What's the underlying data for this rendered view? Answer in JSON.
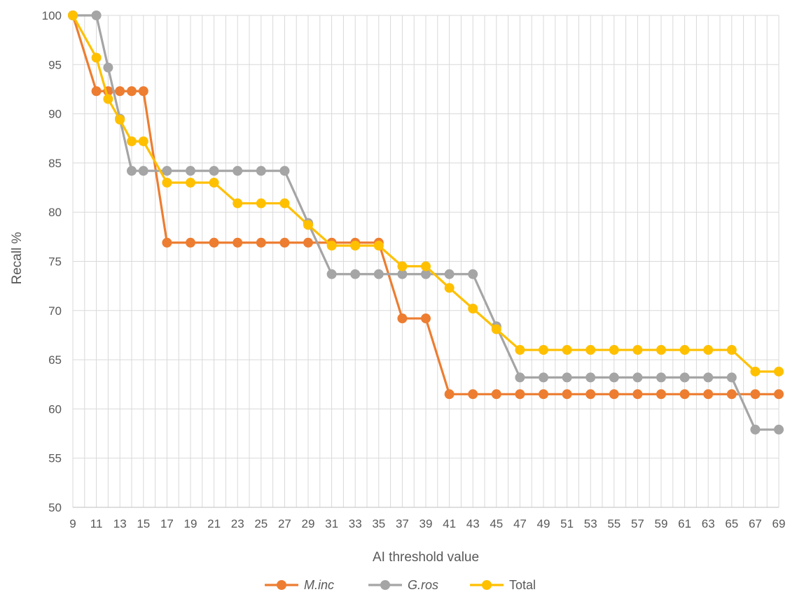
{
  "chart_data": {
    "type": "line",
    "title": "",
    "xlabel": "AI threshold value",
    "ylabel": "Recall %",
    "ylim": [
      50,
      100
    ],
    "yticks": [
      50,
      55,
      60,
      65,
      70,
      75,
      80,
      85,
      90,
      95,
      100
    ],
    "x": [
      9,
      10,
      11,
      12,
      13,
      14,
      15,
      16,
      17,
      18,
      19,
      20,
      21,
      22,
      23,
      24,
      25,
      26,
      27,
      28,
      29,
      30,
      31,
      32,
      33,
      34,
      35,
      36,
      37,
      38,
      39,
      40,
      41,
      42,
      43,
      44,
      45,
      46,
      47,
      48,
      49,
      50,
      51,
      52,
      53,
      54,
      55,
      56,
      57,
      58,
      59,
      60,
      61,
      62,
      63,
      64,
      65,
      66,
      67,
      68,
      69
    ],
    "xtick_labels": [
      "9",
      "11",
      "13",
      "15",
      "17",
      "19",
      "21",
      "23",
      "25",
      "27",
      "29",
      "31",
      "33",
      "35",
      "37",
      "39",
      "41",
      "43",
      "45",
      "47",
      "49",
      "51",
      "53",
      "55",
      "57",
      "59",
      "61",
      "63",
      "65",
      "67",
      "69"
    ],
    "grid": true,
    "legend_position": "bottom",
    "series": [
      {
        "name": "M.inc",
        "color": "#ED7D31",
        "italic": true,
        "points": [
          [
            9,
            100
          ],
          [
            11,
            92.3
          ],
          [
            12,
            92.3
          ],
          [
            13,
            92.3
          ],
          [
            14,
            92.3
          ],
          [
            15,
            92.3
          ],
          [
            17,
            76.9
          ],
          [
            19,
            76.9
          ],
          [
            21,
            76.9
          ],
          [
            23,
            76.9
          ],
          [
            25,
            76.9
          ],
          [
            27,
            76.9
          ],
          [
            29,
            76.9
          ],
          [
            31,
            76.9
          ],
          [
            33,
            76.9
          ],
          [
            35,
            76.9
          ],
          [
            37,
            69.2
          ],
          [
            39,
            69.2
          ],
          [
            41,
            61.5
          ],
          [
            43,
            61.5
          ],
          [
            45,
            61.5
          ],
          [
            47,
            61.5
          ],
          [
            49,
            61.5
          ],
          [
            51,
            61.5
          ],
          [
            53,
            61.5
          ],
          [
            55,
            61.5
          ],
          [
            57,
            61.5
          ],
          [
            59,
            61.5
          ],
          [
            61,
            61.5
          ],
          [
            63,
            61.5
          ],
          [
            65,
            61.5
          ],
          [
            67,
            61.5
          ],
          [
            69,
            61.5
          ]
        ]
      },
      {
        "name": "G.ros",
        "color": "#A5A5A5",
        "italic": true,
        "points": [
          [
            9,
            100
          ],
          [
            11,
            100
          ],
          [
            12,
            94.7
          ],
          [
            13,
            89.5
          ],
          [
            14,
            84.2
          ],
          [
            15,
            84.2
          ],
          [
            17,
            84.2
          ],
          [
            19,
            84.2
          ],
          [
            21,
            84.2
          ],
          [
            23,
            84.2
          ],
          [
            25,
            84.2
          ],
          [
            27,
            84.2
          ],
          [
            29,
            78.9
          ],
          [
            31,
            73.7
          ],
          [
            33,
            73.7
          ],
          [
            35,
            73.7
          ],
          [
            37,
            73.7
          ],
          [
            39,
            73.7
          ],
          [
            41,
            73.7
          ],
          [
            43,
            73.7
          ],
          [
            45,
            68.4
          ],
          [
            47,
            63.2
          ],
          [
            49,
            63.2
          ],
          [
            51,
            63.2
          ],
          [
            53,
            63.2
          ],
          [
            55,
            63.2
          ],
          [
            57,
            63.2
          ],
          [
            59,
            63.2
          ],
          [
            61,
            63.2
          ],
          [
            63,
            63.2
          ],
          [
            65,
            63.2
          ],
          [
            67,
            57.9
          ],
          [
            69,
            57.9
          ]
        ]
      },
      {
        "name": "Total",
        "color": "#FFC000",
        "italic": false,
        "points": [
          [
            9,
            100
          ],
          [
            11,
            95.7
          ],
          [
            12,
            91.5
          ],
          [
            13,
            89.4
          ],
          [
            14,
            87.2
          ],
          [
            15,
            87.2
          ],
          [
            17,
            83.0
          ],
          [
            19,
            83.0
          ],
          [
            21,
            83.0
          ],
          [
            23,
            80.9
          ],
          [
            25,
            80.9
          ],
          [
            27,
            80.9
          ],
          [
            29,
            78.7
          ],
          [
            31,
            76.6
          ],
          [
            33,
            76.6
          ],
          [
            35,
            76.6
          ],
          [
            37,
            74.5
          ],
          [
            39,
            74.5
          ],
          [
            41,
            72.3
          ],
          [
            43,
            70.2
          ],
          [
            45,
            68.1
          ],
          [
            47,
            66.0
          ],
          [
            49,
            66.0
          ],
          [
            51,
            66.0
          ],
          [
            53,
            66.0
          ],
          [
            55,
            66.0
          ],
          [
            57,
            66.0
          ],
          [
            59,
            66.0
          ],
          [
            61,
            66.0
          ],
          [
            63,
            66.0
          ],
          [
            65,
            66.0
          ],
          [
            67,
            63.8
          ],
          [
            69,
            63.8
          ]
        ]
      }
    ]
  }
}
